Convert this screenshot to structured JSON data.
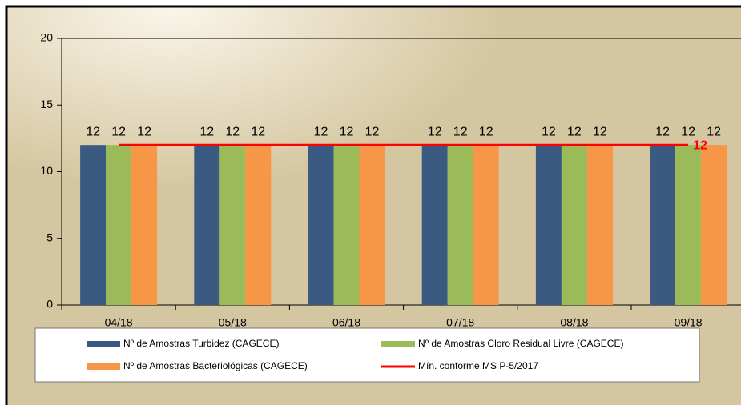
{
  "chart_data": {
    "type": "bar",
    "categories": [
      "04/18",
      "05/18",
      "06/18",
      "07/18",
      "08/18",
      "09/18"
    ],
    "series": [
      {
        "name": "Nº de Amostras Turbidez (CAGECE)",
        "color": "#3a5a82",
        "values": [
          12,
          12,
          12,
          12,
          12,
          12
        ]
      },
      {
        "name": "Nº de Amostras Cloro Residual Livre (CAGECE)",
        "color": "#9bbb59",
        "values": [
          12,
          12,
          12,
          12,
          12,
          12
        ]
      },
      {
        "name": "Nº de Amostras Bacteriológicas (CAGECE)",
        "color": "#f79646",
        "values": [
          12,
          12,
          12,
          12,
          12,
          12
        ]
      },
      {
        "name": "Mín. conforme MS P-5/2017",
        "color": "#ff0000",
        "type": "line",
        "values": [
          12,
          12,
          12,
          12,
          12,
          12
        ]
      }
    ],
    "ylim": [
      0,
      20
    ],
    "yticks": [
      0,
      5,
      10,
      15,
      20
    ],
    "grid": false,
    "legend": "bottom"
  }
}
